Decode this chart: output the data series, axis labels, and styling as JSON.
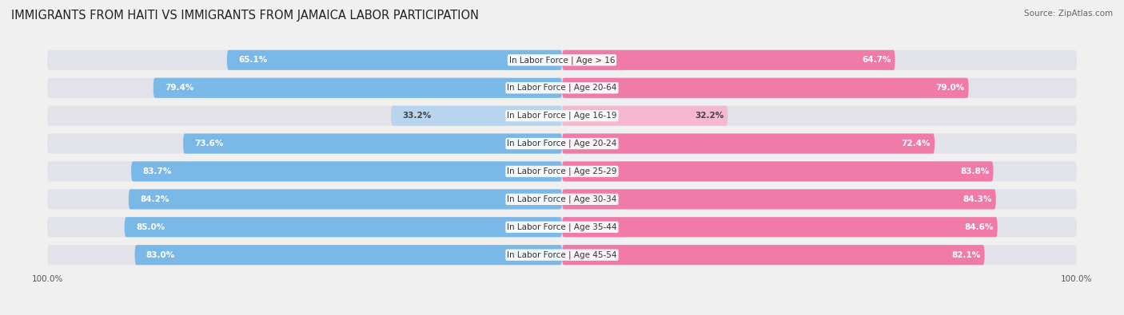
{
  "title": "IMMIGRANTS FROM HAITI VS IMMIGRANTS FROM JAMAICA LABOR PARTICIPATION",
  "source": "Source: ZipAtlas.com",
  "categories": [
    "In Labor Force | Age > 16",
    "In Labor Force | Age 20-64",
    "In Labor Force | Age 16-19",
    "In Labor Force | Age 20-24",
    "In Labor Force | Age 25-29",
    "In Labor Force | Age 30-34",
    "In Labor Force | Age 35-44",
    "In Labor Force | Age 45-54"
  ],
  "haiti_values": [
    65.1,
    79.4,
    33.2,
    73.6,
    83.7,
    84.2,
    85.0,
    83.0
  ],
  "jamaica_values": [
    64.7,
    79.0,
    32.2,
    72.4,
    83.8,
    84.3,
    84.6,
    82.1
  ],
  "haiti_color": "#7ab8e8",
  "haiti_color_light": "#b8d5ef",
  "jamaica_color": "#f07aa8",
  "jamaica_color_light": "#f5b8d0",
  "background_color": "#f0f0f0",
  "bar_bg_color": "#e2e2ea",
  "title_fontsize": 10.5,
  "label_fontsize": 7.5,
  "value_fontsize": 7.5,
  "legend_fontsize": 8.5,
  "max_value": 100.0
}
